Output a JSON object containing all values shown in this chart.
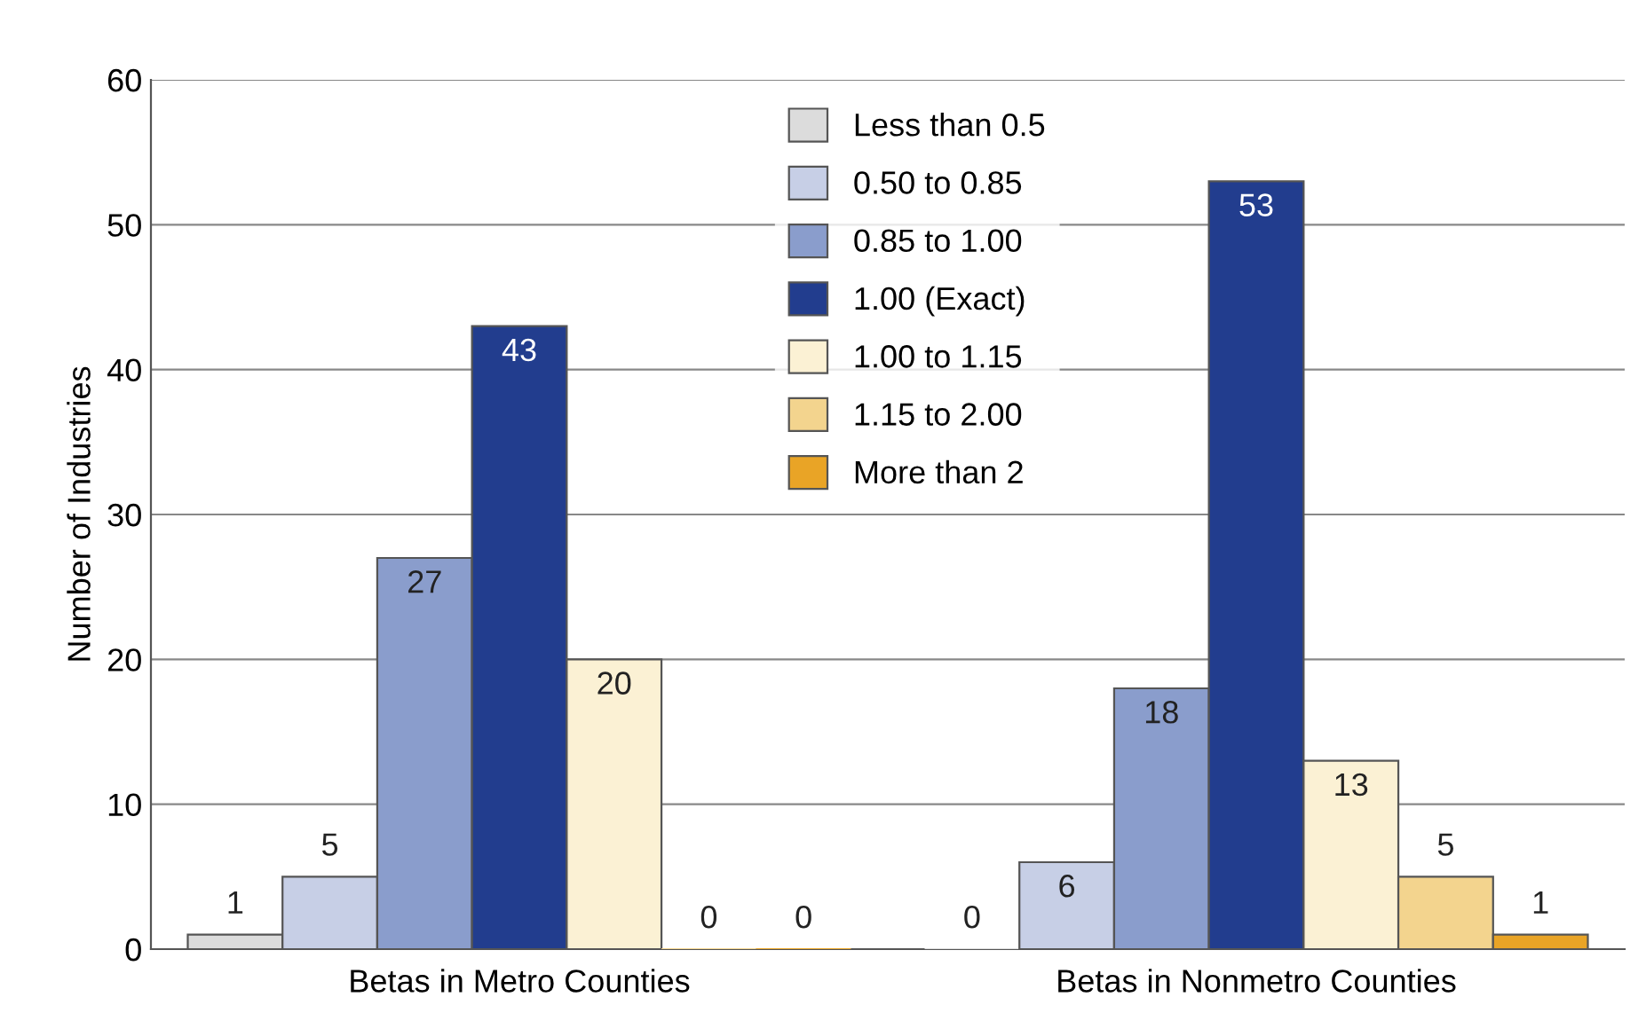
{
  "chart_data": {
    "type": "bar",
    "ylabel": "Number of Industries",
    "categories": [
      "Betas in Metro Counties",
      "Betas in Nonmetro Counties"
    ],
    "series": [
      {
        "name": "Less than 0.5",
        "color": "#dcdcdc",
        "values": [
          1,
          0
        ]
      },
      {
        "name": "0.50 to 0.85",
        "color": "#c7cfe6",
        "values": [
          5,
          6
        ]
      },
      {
        "name": "0.85 to 1.00",
        "color": "#8a9dcc",
        "values": [
          27,
          18
        ]
      },
      {
        "name": "1.00 (Exact)",
        "color": "#223d8e",
        "values": [
          43,
          53
        ]
      },
      {
        "name": "1.00 to 1.15",
        "color": "#fbf1d4",
        "values": [
          20,
          13
        ]
      },
      {
        "name": "1.15 to 2.00",
        "color": "#f3d48e",
        "values": [
          0,
          5
        ]
      },
      {
        "name": "More than 2",
        "color": "#e9a426",
        "values": [
          0,
          1
        ]
      }
    ],
    "ylim": [
      0,
      60
    ],
    "yticks": [
      0,
      10,
      20,
      30,
      40,
      50,
      60
    ],
    "grid": "y",
    "legend": "top",
    "data_labels": true
  }
}
